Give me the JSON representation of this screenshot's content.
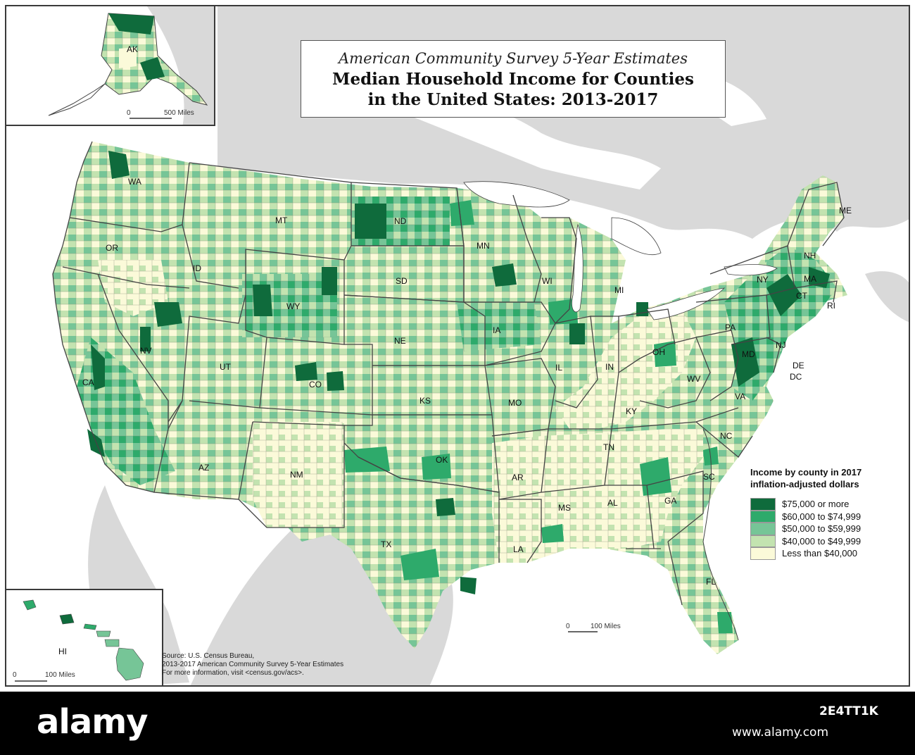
{
  "title": {
    "subtitle": "American Community Survey 5-Year Estimates",
    "line1": "Median Household Income for Counties",
    "line2": "in the United States: 2013-2017"
  },
  "colors": {
    "water": "#ffffff",
    "land_outside": "#d9d9d9",
    "bin_75k_plus": "#0f6b3c",
    "bin_60_75k": "#2eaa6b",
    "bin_50_60k": "#76c597",
    "bin_40_50k": "#c3e3b0",
    "bin_under_40k": "#fbfad9",
    "state_border": "#444444"
  },
  "legend": {
    "title_line1": "Income by county in 2017",
    "title_line2": "inflation-adjusted dollars",
    "items": [
      {
        "label": "$75,000 or more",
        "color": "#0f6b3c"
      },
      {
        "label": "$60,000 to $74,999",
        "color": "#2eaa6b"
      },
      {
        "label": "$50,000 to $59,999",
        "color": "#76c597"
      },
      {
        "label": "$40,000 to $49,999",
        "color": "#c3e3b0"
      },
      {
        "label": "Less than $40,000",
        "color": "#fbfad9"
      }
    ]
  },
  "state_labels": {
    "WA": "WA",
    "OR": "OR",
    "CA": "CA",
    "ID": "ID",
    "NV": "NV",
    "MT": "MT",
    "WY": "WY",
    "UT": "UT",
    "AZ": "AZ",
    "CO": "CO",
    "NM": "NM",
    "ND": "ND",
    "SD": "SD",
    "NE": "NE",
    "KS": "KS",
    "OK": "OK",
    "TX": "TX",
    "MN": "MN",
    "IA": "IA",
    "MO": "MO",
    "AR": "AR",
    "LA": "LA",
    "WI": "WI",
    "IL": "IL",
    "MS": "MS",
    "MI": "MI",
    "IN": "IN",
    "KY": "KY",
    "TN": "TN",
    "AL": "AL",
    "OH": "OH",
    "GA": "GA",
    "FL": "FL",
    "SC": "SC",
    "NC": "NC",
    "VA": "VA",
    "WV": "WV",
    "PA": "PA",
    "NY": "NY",
    "MD": "MD",
    "DE": "DE",
    "DC": "DC",
    "NJ": "NJ",
    "CT": "CT",
    "RI": "RI",
    "MA": "MA",
    "NH": "NH",
    "ME": "ME",
    "AK": "AK",
    "HI": "HI"
  },
  "scales": {
    "main_zero": "0",
    "main_label": "100 Miles",
    "ak_zero": "0",
    "ak_label": "500 Miles",
    "hi_zero": "0",
    "hi_label": "100 Miles"
  },
  "source": {
    "line1": "Source: U.S. Census Bureau,",
    "line2": "2013-2017 American Community Survey 5-Year Estimates",
    "line3": "For more information, visit  <census.gov/acs>."
  },
  "watermark": {
    "logo": "alamy",
    "image_id": "2E4TT1K",
    "url": "www.alamy.com"
  }
}
